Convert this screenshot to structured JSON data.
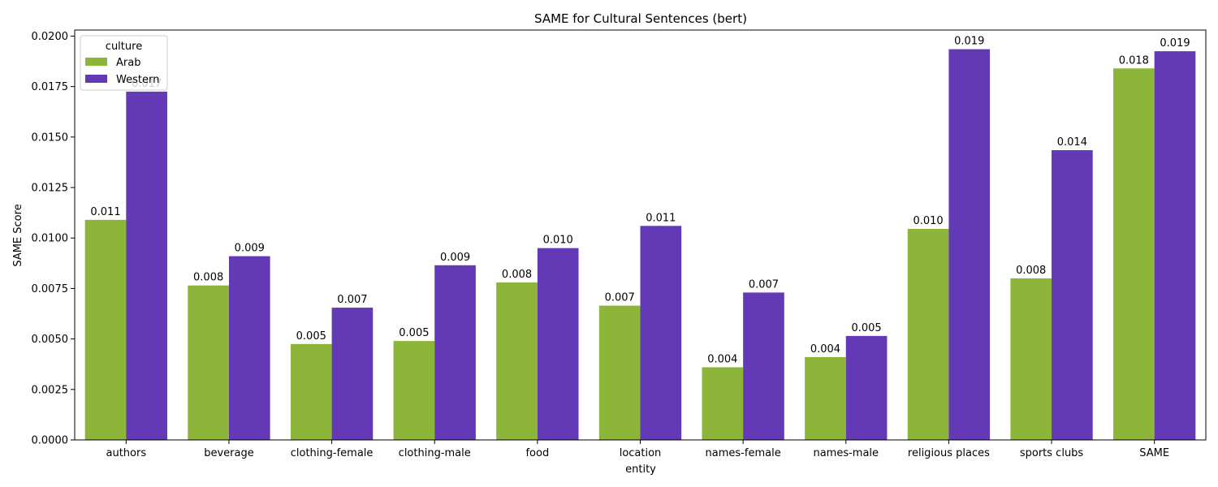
{
  "chart_data": {
    "type": "bar",
    "title": "SAME for Cultural Sentences (bert)",
    "xlabel": "entity",
    "ylabel": "SAME Score",
    "ylim": [
      0,
      0.0203
    ],
    "yticks": [
      "0.0000",
      "0.0025",
      "0.0050",
      "0.0075",
      "0.0100",
      "0.0125",
      "0.0150",
      "0.0175",
      "0.0200"
    ],
    "ytick_values": [
      0,
      0.0025,
      0.005,
      0.0075,
      0.01,
      0.0125,
      0.015,
      0.0175,
      0.02
    ],
    "categories": [
      "authors",
      "beverage",
      "clothing-female",
      "clothing-male",
      "food",
      "location",
      "names-female",
      "names-male",
      "religious places",
      "sports clubs",
      "SAME"
    ],
    "legend": {
      "title": "culture",
      "placement": "top-left"
    },
    "series": [
      {
        "name": "Arab",
        "color": "#8db53a",
        "values": [
          0.0109,
          0.00765,
          0.00475,
          0.0049,
          0.0078,
          0.00665,
          0.0036,
          0.0041,
          0.01045,
          0.008,
          0.0184
        ],
        "labels": [
          "0.011",
          "0.008",
          "0.005",
          "0.005",
          "0.008",
          "0.007",
          "0.004",
          "0.004",
          "0.010",
          "0.008",
          "0.018"
        ]
      },
      {
        "name": "Western",
        "color": "#6339b5",
        "values": [
          0.01725,
          0.0091,
          0.00655,
          0.00865,
          0.0095,
          0.0106,
          0.0073,
          0.00515,
          0.01935,
          0.01435,
          0.01925
        ],
        "labels": [
          "0.017",
          "0.009",
          "0.007",
          "0.009",
          "0.010",
          "0.011",
          "0.007",
          "0.005",
          "0.019",
          "0.014",
          "0.019"
        ]
      }
    ]
  }
}
